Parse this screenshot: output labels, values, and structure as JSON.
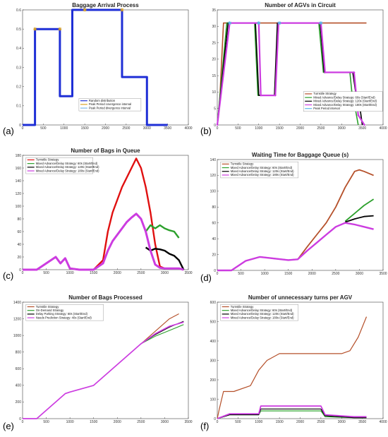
{
  "figure": {
    "panels": [
      "(a)",
      "(b)",
      "(c)",
      "(d)",
      "(e)",
      "(f)"
    ]
  },
  "chart_data": [
    {
      "panel": "(a)",
      "type": "line",
      "title": "Baggage Arrival Process",
      "xlim": [
        0,
        4000
      ],
      "ylim": [
        0,
        0.6
      ],
      "xticks": [
        "0",
        "500",
        "1000",
        "1500",
        "2000",
        "2500",
        "3000",
        "3500",
        "4000"
      ],
      "yticks": [
        "0",
        "0.1",
        "0.2",
        "0.3",
        "0.4",
        "0.5",
        "0.6"
      ],
      "legend_position": "bottom-center",
      "series": [
        {
          "name": "Random distribution",
          "color": "#1f2fd6",
          "x": [
            0,
            300,
            300,
            900,
            900,
            1200,
            1200,
            1500,
            1500,
            2400,
            2400,
            3000,
            3000,
            3500
          ],
          "y": [
            0,
            0,
            0.5,
            0.5,
            0.15,
            0.15,
            0.6,
            0.6,
            0.6,
            0.6,
            0.25,
            0.25,
            0,
            0
          ]
        },
        {
          "name": "Peak Period covergence interval",
          "color": "#d8a020",
          "marker": "cross",
          "x": [
            300,
            900,
            1500,
            2400
          ],
          "y": [
            0.5,
            0.5,
            0.6,
            0.6
          ]
        },
        {
          "name": "Peak Period divergence interval",
          "color": "#7ab8e8",
          "marker": "dot",
          "x": [],
          "y": []
        }
      ]
    },
    {
      "panel": "(b)",
      "type": "line",
      "title": "Number of AGVs in Circuit",
      "xlim": [
        0,
        4000
      ],
      "ylim": [
        0,
        35
      ],
      "xticks": [
        "0",
        "500",
        "1000",
        "1500",
        "2000",
        "2500",
        "3000",
        "3500",
        "4000"
      ],
      "yticks": [
        "0",
        "5",
        "10",
        "15",
        "20",
        "25",
        "30",
        "35"
      ],
      "legend_position": "bottom-right",
      "series": [
        {
          "name": "Turnstile Strategy",
          "color": "#b5502a",
          "x": [
            0,
            50,
            150,
            3600
          ],
          "y": [
            0,
            5,
            31,
            31
          ]
        },
        {
          "name": "Mixed Advance/Delay Strategy: 60s (Start/End)",
          "color": "#2ca02c",
          "x": [
            0,
            230,
            900,
            980,
            1000,
            1380,
            1480,
            2450,
            2560,
            3200,
            3270,
            3300,
            3400
          ],
          "y": [
            0,
            31,
            31,
            9,
            9,
            9,
            31,
            31,
            16,
            16,
            7,
            7,
            0
          ]
        },
        {
          "name": "Mixed Advance/Delay Strategy: 120s (Start/End)",
          "color": "#000000",
          "x": [
            0,
            260,
            920,
            1000,
            1050,
            1380,
            1450,
            2480,
            2580,
            3270,
            3350,
            3400,
            3500
          ],
          "y": [
            0,
            31,
            31,
            9,
            9,
            9,
            31,
            31,
            16,
            16,
            9,
            9,
            0
          ]
        },
        {
          "name": "Mixed Advance/Delay Strategy: 180s (Start/End)",
          "color": "#cc3ce0",
          "marker": "plus",
          "x": [
            0,
            300,
            1000,
            1050,
            1400,
            1480,
            2500,
            2600,
            3300,
            3400,
            3550
          ],
          "y": [
            0,
            31,
            31,
            9,
            9,
            31,
            31,
            16,
            16,
            3,
            0
          ]
        },
        {
          "name": "Peak Period interval",
          "color": "#5ab4e8",
          "marker": "star",
          "x": [
            300,
            1000,
            1500,
            2500
          ],
          "y": [
            31,
            31,
            31,
            31
          ]
        }
      ]
    },
    {
      "panel": "(c)",
      "type": "line",
      "title": "Number of Bags in Queue",
      "xlim": [
        0,
        3500
      ],
      "ylim": [
        0,
        180
      ],
      "xticks": [
        "0",
        "500",
        "1000",
        "1500",
        "2000",
        "2500",
        "3000",
        "3500"
      ],
      "yticks": [
        "0",
        "20",
        "40",
        "60",
        "80",
        "100",
        "120",
        "140",
        "160",
        "180"
      ],
      "legend_position": "top-left",
      "series": [
        {
          "name": "Turnstile Strategy",
          "color": "#e01010",
          "x": [
            0,
            300,
            400,
            500,
            600,
            700,
            800,
            900,
            1000,
            1200,
            1500,
            1700,
            1800,
            1900,
            2000,
            2100,
            2200,
            2300,
            2400,
            2500,
            2600,
            2700,
            2800,
            2900,
            3000,
            3100,
            3200,
            3300,
            3400
          ],
          "y": [
            0,
            0,
            5,
            10,
            15,
            20,
            10,
            18,
            2,
            0,
            0,
            15,
            60,
            90,
            110,
            130,
            145,
            160,
            175,
            160,
            130,
            90,
            40,
            5,
            2,
            2,
            2,
            2,
            0
          ]
        },
        {
          "name": "Mixed Advance/Delay Strategy: 60s (Start/End)",
          "color": "#2ca02c",
          "x": [
            2600,
            2700,
            2800,
            2900,
            3000,
            3100,
            3200,
            3300
          ],
          "y": [
            60,
            70,
            65,
            70,
            65,
            62,
            60,
            50
          ]
        },
        {
          "name": "Mixed Advance/Delay Strategy: 120s (Start/End)",
          "color": "#000000",
          "x": [
            2600,
            2700,
            2800,
            2900,
            3000,
            3100,
            3200,
            3300,
            3400
          ],
          "y": [
            35,
            30,
            33,
            32,
            30,
            25,
            22,
            15,
            0
          ]
        },
        {
          "name": "Mixed Advance/Delay Strategy: 180s (Start/End)",
          "color": "#cc3ce0",
          "x": [
            0,
            300,
            400,
            500,
            600,
            700,
            800,
            900,
            1000,
            1200,
            1500,
            1700,
            1800,
            1900,
            2000,
            2100,
            2200,
            2300,
            2400,
            2500,
            2600,
            2700,
            2800,
            2900,
            3000,
            3100,
            3200,
            3300,
            3400
          ],
          "y": [
            0,
            0,
            5,
            10,
            15,
            20,
            10,
            18,
            2,
            0,
            0,
            10,
            30,
            45,
            55,
            65,
            75,
            82,
            88,
            80,
            60,
            30,
            8,
            3,
            2,
            2,
            2,
            2,
            0
          ]
        }
      ]
    },
    {
      "panel": "(d)",
      "type": "line",
      "title": "Waiting Time for Baggage Queue (s)",
      "xlim": [
        0,
        3500
      ],
      "ylim": [
        0,
        140
      ],
      "xticks": [
        "0",
        "500",
        "1000",
        "1500",
        "2000",
        "2500",
        "3000",
        "3500"
      ],
      "yticks": [
        "0",
        "20",
        "40",
        "60",
        "80",
        "100",
        "120",
        "140"
      ],
      "legend_position": "top-left",
      "series": [
        {
          "name": "Turnstile Strategy",
          "color": "#b5502a",
          "x": [
            0,
            300,
            600,
            900,
            1200,
            1500,
            1700,
            1900,
            2100,
            2300,
            2500,
            2700,
            2900,
            3000,
            3100,
            3300
          ],
          "y": [
            0,
            0,
            12,
            17,
            15,
            13,
            14,
            30,
            45,
            60,
            80,
            105,
            125,
            127,
            125,
            120
          ]
        },
        {
          "name": "Mixed Advance/Delay Strategy: 60s (Start/End)",
          "color": "#2ca02c",
          "x": [
            2700,
            2900,
            3100,
            3300
          ],
          "y": [
            62,
            72,
            82,
            90
          ]
        },
        {
          "name": "Mixed Advance/Delay Strategy: 120s (Start/End)",
          "color": "#000000",
          "x": [
            2700,
            2900,
            3100,
            3300
          ],
          "y": [
            61,
            65,
            68,
            69
          ]
        },
        {
          "name": "Mixed Advance/Delay Strategy: 180s (Start/End)",
          "color": "#cc3ce0",
          "x": [
            0,
            300,
            600,
            900,
            1200,
            1500,
            1700,
            1900,
            2100,
            2300,
            2500,
            2700,
            2900,
            3100,
            3300
          ],
          "y": [
            0,
            0,
            12,
            17,
            15,
            13,
            14,
            25,
            35,
            45,
            55,
            60,
            58,
            55,
            52
          ]
        }
      ]
    },
    {
      "panel": "(e)",
      "type": "line",
      "title": "Number of Bags Processed",
      "xlim": [
        0,
        3500
      ],
      "ylim": [
        0,
        1400
      ],
      "xticks": [
        "0",
        "500",
        "1000",
        "1500",
        "2000",
        "2500",
        "3000",
        "3500"
      ],
      "yticks": [
        "0",
        "200",
        "400",
        "600",
        "800",
        "1000",
        "1200",
        "1400"
      ],
      "legend_position": "top-left",
      "series": [
        {
          "name": "Turnstile Strategy",
          "color": "#b5502a",
          "x": [
            2500,
            2800,
            3100,
            3300
          ],
          "y": [
            900,
            1050,
            1200,
            1260
          ]
        },
        {
          "name": "On-Demand Strategy",
          "color": "#2ca02c",
          "x": [
            2500,
            2800,
            3100,
            3400
          ],
          "y": [
            900,
            990,
            1060,
            1130
          ]
        },
        {
          "name": "Delay Parking Strategy: 60s (Start/End)",
          "color": "#000000",
          "x": [
            2500,
            2800,
            3100,
            3400
          ],
          "y": [
            900,
            1010,
            1100,
            1170
          ]
        },
        {
          "name": "Needs Prediction Strategy: 40s (Start/End)",
          "color": "#cc3ce0",
          "x": [
            0,
            300,
            900,
            1000,
            1500,
            2000,
            2500,
            2800,
            3100,
            3400
          ],
          "y": [
            0,
            0,
            300,
            320,
            400,
            650,
            900,
            1020,
            1110,
            1160
          ]
        }
      ]
    },
    {
      "panel": "(f)",
      "type": "line",
      "title": "Number of unnecessary turns per AGV",
      "xlim": [
        0,
        4000
      ],
      "ylim": [
        0,
        600
      ],
      "xticks": [
        "0",
        "500",
        "1000",
        "1500",
        "2000",
        "2500",
        "3000",
        "3500",
        "4000"
      ],
      "yticks": [
        "0",
        "100",
        "200",
        "300",
        "400",
        "500",
        "600"
      ],
      "legend_position": "top-left",
      "series": [
        {
          "name": "Turnstile Strategy",
          "color": "#b5502a",
          "x": [
            0,
            50,
            150,
            300,
            400,
            800,
            1000,
            1200,
            1500,
            2000,
            2500,
            3000,
            3200,
            3400,
            3600
          ],
          "y": [
            0,
            50,
            140,
            140,
            140,
            170,
            250,
            300,
            335,
            335,
            335,
            335,
            350,
            420,
            525
          ]
        },
        {
          "name": "Mixed Advance/Delay Strategy: 60s (Start/End)",
          "color": "#2ca02c",
          "x": [
            0,
            300,
            1000,
            1050,
            1500,
            2500,
            2600,
            3300,
            3600
          ],
          "y": [
            0,
            20,
            20,
            40,
            40,
            40,
            10,
            5,
            5
          ]
        },
        {
          "name": "Mixed Advance/Delay Strategy: 120s (Start/End)",
          "color": "#000000",
          "x": [
            0,
            300,
            1000,
            1050,
            1500,
            2500,
            2600,
            3300,
            3600
          ],
          "y": [
            0,
            20,
            20,
            50,
            50,
            50,
            15,
            5,
            5
          ]
        },
        {
          "name": "Mixed Advance/Delay Strategy: 180s (Start/End)",
          "color": "#cc3ce0",
          "x": [
            0,
            300,
            1000,
            1050,
            1500,
            2500,
            2600,
            3300,
            3600
          ],
          "y": [
            0,
            25,
            25,
            65,
            65,
            65,
            20,
            10,
            10
          ]
        }
      ]
    }
  ]
}
